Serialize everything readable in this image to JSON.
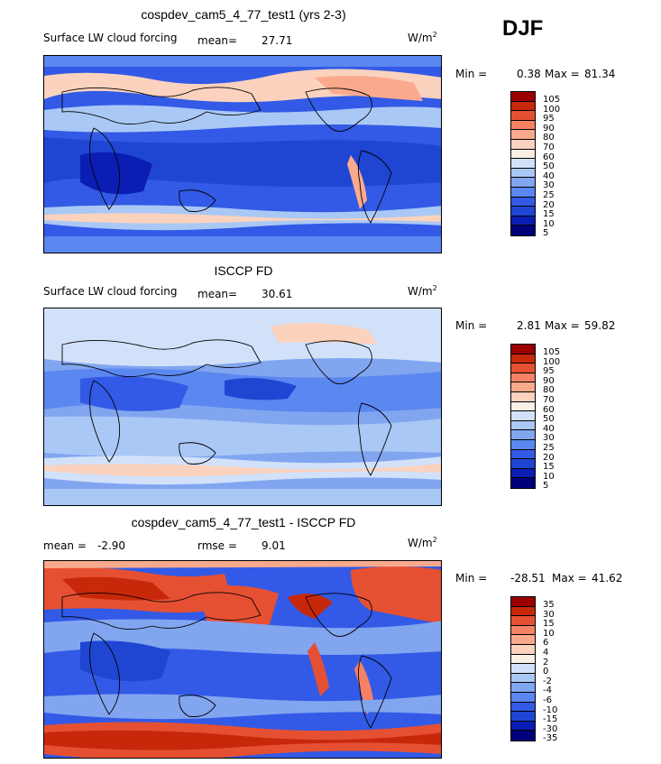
{
  "season": "DJF",
  "colors": {
    "abs_levels": [
      "#00007a",
      "#0a1eb4",
      "#1e46d2",
      "#325ae6",
      "#5a87f0",
      "#82a5f0",
      "#aac8f5",
      "#d2e1fa",
      "#faf0e6",
      "#fad2be",
      "#faaa8c",
      "#f58264",
      "#e65032",
      "#c8280a",
      "#9b0000"
    ],
    "diff_levels": [
      "#00007a",
      "#0a1eb4",
      "#1e46d2",
      "#325ae6",
      "#5a87f0",
      "#82a5f0",
      "#aac8f5",
      "#d2e1fa",
      "#faf0e6",
      "#fad2be",
      "#faaa8c",
      "#f58264",
      "#e65032",
      "#c8280a",
      "#9b0000"
    ]
  },
  "panels": [
    {
      "title": "cospdev_cam5_4_77_test1 (yrs 2-3)",
      "variable": "Surface LW cloud forcing",
      "mean_label": "mean=",
      "mean_value": "27.71",
      "units": "W/m",
      "units_exp": "2",
      "min_label": "Min =",
      "min_value": "0.38",
      "max_label": "Max =",
      "max_value": "81.34",
      "colorbar_labels": [
        "105",
        "100",
        "95",
        "90",
        "80",
        "70",
        "60",
        "50",
        "40",
        "30",
        "25",
        "20",
        "15",
        "10",
        "5"
      ]
    },
    {
      "title": "ISCCP FD",
      "variable": "Surface LW cloud forcing",
      "mean_label": "mean=",
      "mean_value": "30.61",
      "units": "W/m",
      "units_exp": "2",
      "min_label": "Min =",
      "min_value": "2.81",
      "max_label": "Max =",
      "max_value": "59.82",
      "colorbar_labels": [
        "105",
        "100",
        "95",
        "90",
        "80",
        "70",
        "60",
        "50",
        "40",
        "30",
        "25",
        "20",
        "15",
        "10",
        "5"
      ]
    },
    {
      "title": "cospdev_cam5_4_77_test1 - ISCCP FD",
      "mean_label": "mean =",
      "mean_value": "-2.90",
      "rmse_label": "rmse =",
      "rmse_value": "9.01",
      "units": "W/m",
      "units_exp": "2",
      "min_label": "Min =",
      "min_value": "-28.51",
      "max_label": "Max =",
      "max_value": "41.62",
      "colorbar_labels": [
        "35",
        "30",
        "15",
        "10",
        "6",
        "4",
        "2",
        "0",
        "-2",
        "-4",
        "-6",
        "-10",
        "-15",
        "-30",
        "-35"
      ]
    }
  ]
}
